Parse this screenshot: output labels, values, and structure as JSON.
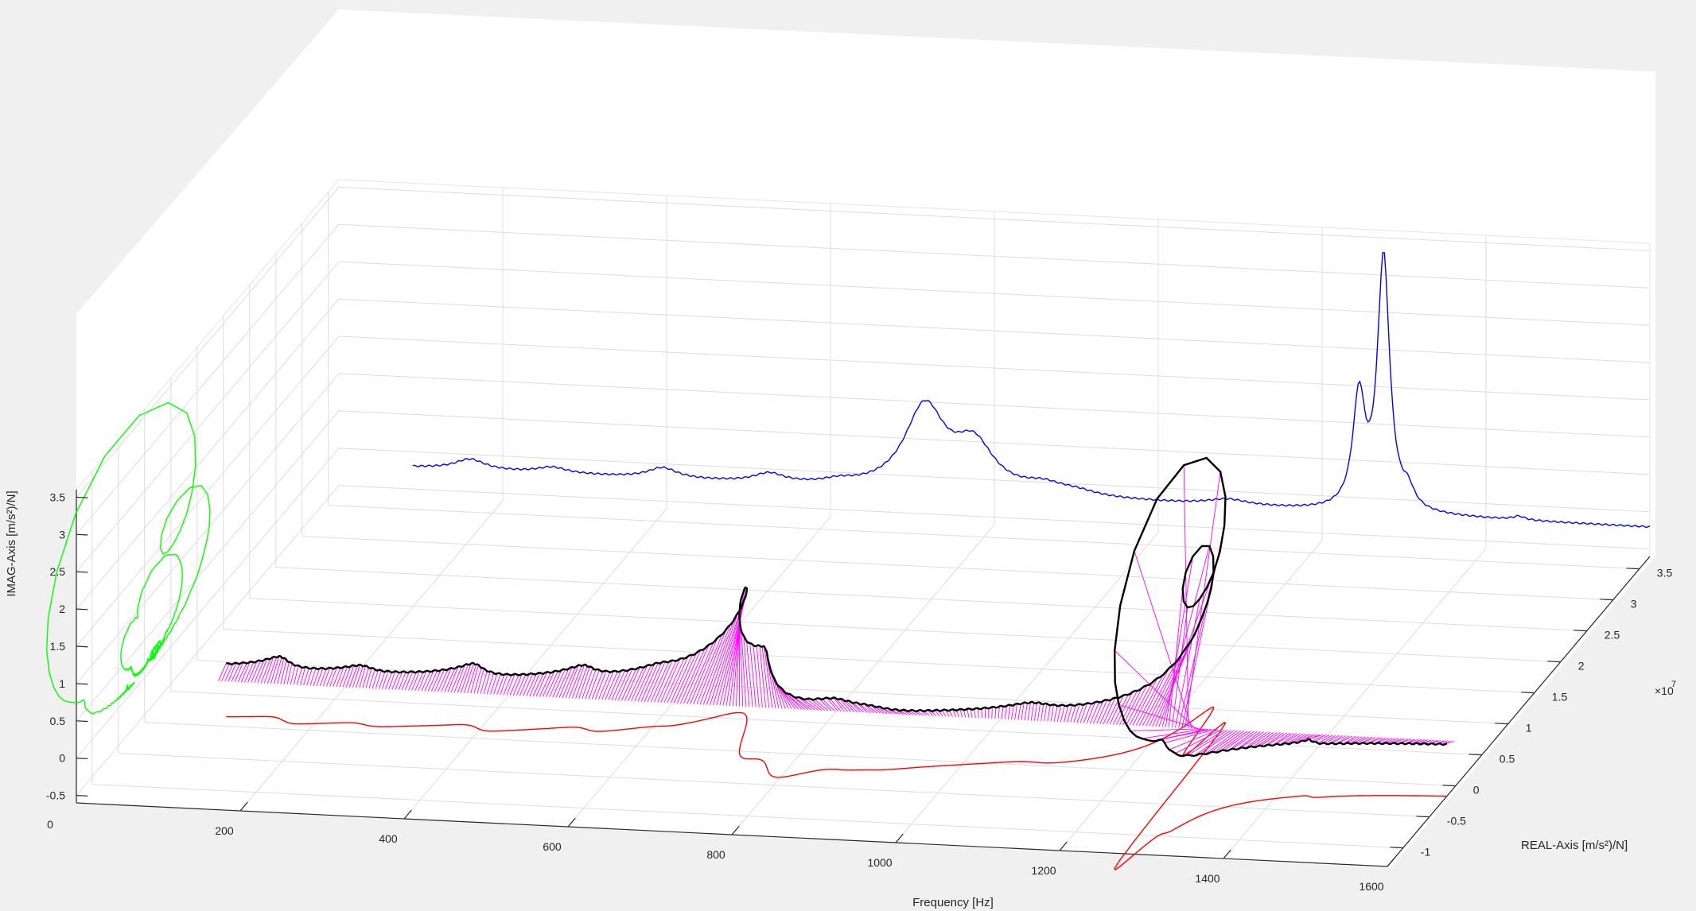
{
  "chart_data": {
    "type": "line",
    "projection": "3d",
    "title": "",
    "xlabel": "Frequency [Hz]",
    "ylabel": "REAL-Axis [m/s²)/N]",
    "zlabel": "IMAG-Axis [m/s²)/N]",
    "y_exponent_label": "×10",
    "y_exponent_power": "7",
    "xlim": [
      0,
      1600
    ],
    "ylim": [
      -1.3,
      3.7
    ],
    "zlim": [
      -0.6,
      3.6
    ],
    "xticks": [
      "200",
      "400",
      "600",
      "800",
      "1000",
      "1200",
      "1400",
      "1600"
    ],
    "yticks": [
      "-1",
      "-0.5",
      "0",
      "0.5",
      "1",
      "1.5",
      "2",
      "2.5",
      "3",
      "3.5"
    ],
    "zticks": [
      "-0.5",
      "0",
      "0.5",
      "1",
      "1.5",
      "2",
      "2.5",
      "3",
      "3.5"
    ],
    "origin_tick": "0",
    "grid": true,
    "colors": {
      "background": "#f0f0f0",
      "plane": "#ffffff",
      "imag_projection": "#0000ff",
      "real_projection": "#ff0000",
      "nyquist_projection": "#00ff00",
      "frf_3d": "#000000",
      "stems": "#ff00ff"
    },
    "peaks": [
      {
        "freq": 160,
        "amp": 0.14
      },
      {
        "freq": 260,
        "amp": 0.08
      },
      {
        "freq": 395,
        "amp": 0.14
      },
      {
        "freq": 525,
        "amp": 0.12
      },
      {
        "freq": 610,
        "amp": 0.05
      },
      {
        "freq": 715,
        "amp": 1.1
      },
      {
        "freq": 775,
        "amp": 0.6
      },
      {
        "freq": 860,
        "amp": 0.12
      },
      {
        "freq": 900,
        "amp": 0.06
      },
      {
        "freq": 1085,
        "amp": 0.08
      },
      {
        "freq": 1245,
        "amp": 1.48
      },
      {
        "freq": 1275,
        "amp": 3.4
      },
      {
        "freq": 1305,
        "amp": 0.22
      },
      {
        "freq": 1440,
        "amp": 0.05
      }
    ]
  }
}
